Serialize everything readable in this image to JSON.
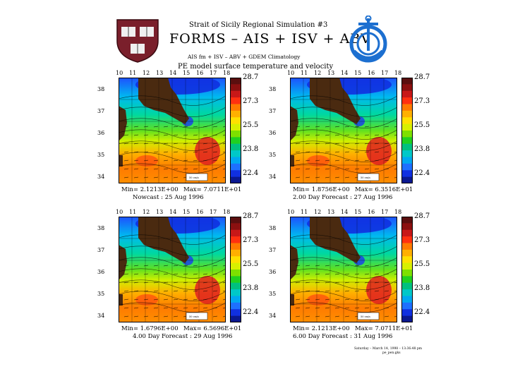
{
  "header": {
    "line1": "Strait of Sicily Regional Simulation #3",
    "line2": "FORMS  –  AIS  +  ISV  +  ABV",
    "line3": "AIS fm + ISV – ABV + GDEM Climatology",
    "line4": "PE model surface temperature and velocity"
  },
  "logos": {
    "left": "harvard-shield",
    "right": "anchor-emblem"
  },
  "axes": {
    "lon_ticks": [
      "10",
      "11",
      "12",
      "13",
      "14",
      "15",
      "16",
      "17",
      "18"
    ],
    "lat_ticks": [
      "38",
      "37",
      "36",
      "35",
      "34"
    ]
  },
  "colorbar": {
    "labels": [
      "28.7",
      "27.3",
      "25.5",
      "23.8",
      "22.4"
    ],
    "colors": [
      "#5a0f0f",
      "#8b1010",
      "#c81818",
      "#ff3010",
      "#ff7a00",
      "#ffb000",
      "#ffe000",
      "#d8f000",
      "#7ee000",
      "#20d020",
      "#00c080",
      "#00c8c8",
      "#00a8f0",
      "#1e70ff",
      "#1030e0",
      "#0a1890"
    ]
  },
  "panels": [
    {
      "min": "Min= 2.1213E+00",
      "max": "Max= 7.0711E+01",
      "caption": "Nowcast : 25 Aug 1996",
      "scale": "50 cm/s"
    },
    {
      "min": "Min= 1.8756E+00",
      "max": "Max= 6.3516E+01",
      "caption": "2.00 Day Forecast : 27 Aug 1996",
      "scale": "50 cm/s"
    },
    {
      "min": "Min= 1.6796E+00",
      "max": "Max= 6.5696E+01",
      "caption": "4.00 Day Forecast : 29 Aug 1996",
      "scale": "50 cm/s"
    },
    {
      "min": "Min= 2.1213E+00",
      "max": "Max= 7.0711E+01",
      "caption": "6.00 Day Forecast : 31 Aug 1996",
      "scale": "50 cm/s"
    }
  ],
  "footer": {
    "credit": "Saturday – March 14, 1998 – 13:36:48 pm",
    "credit2": "pe_pen.gks"
  }
}
